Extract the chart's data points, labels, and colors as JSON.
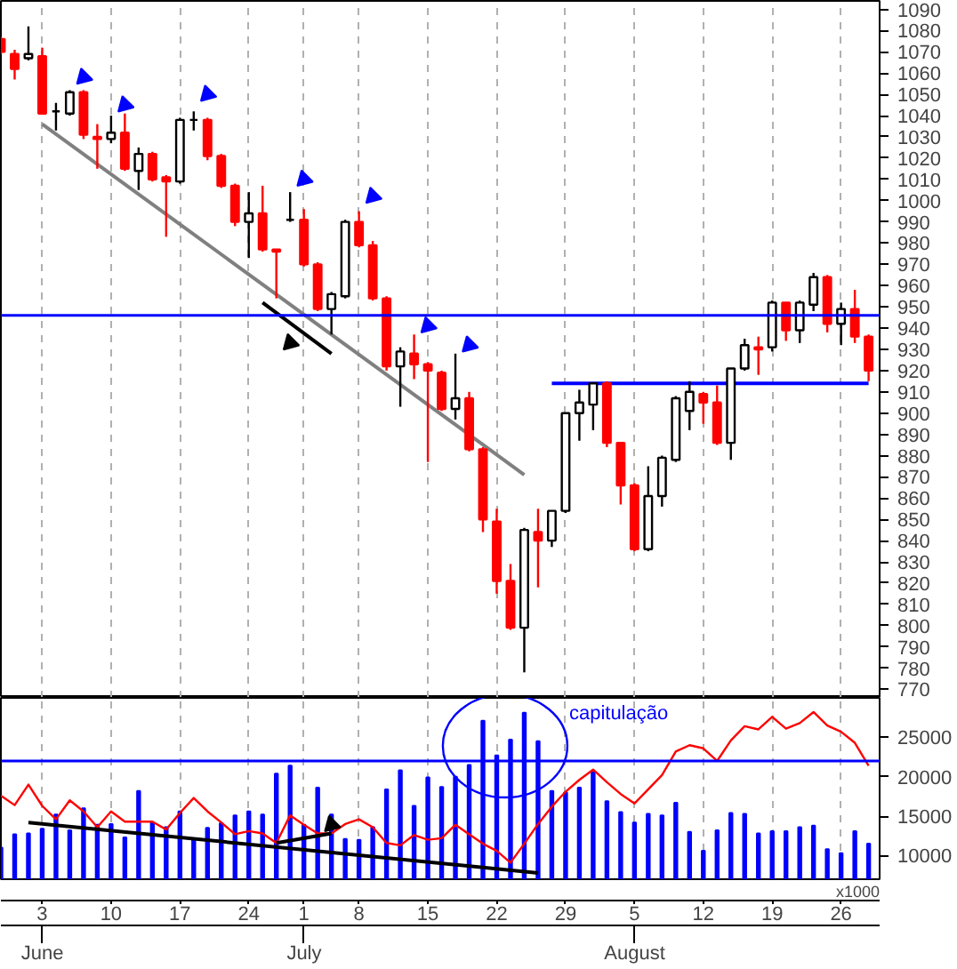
{
  "chart_data": [
    {
      "type": "candlestick",
      "categories": [
        null,
        null,
        null,
        "3",
        null,
        null,
        null,
        null,
        "10",
        null,
        null,
        null,
        null,
        "17",
        null,
        null,
        null,
        null,
        "24",
        null,
        null,
        null,
        "1",
        null,
        null,
        null,
        "8",
        null,
        null,
        null,
        null,
        "15",
        null,
        null,
        null,
        null,
        "22",
        null,
        null,
        null,
        null,
        "29",
        null,
        null,
        null,
        null,
        "5",
        null,
        null,
        null,
        null,
        "12",
        null,
        null,
        null,
        null,
        "19",
        null,
        null,
        null,
        null,
        "26",
        null,
        null
      ],
      "ohlc": [
        [
          1076,
          1077,
          1069,
          1070
        ],
        [
          1069,
          1071,
          1057,
          1062
        ],
        [
          1067,
          1082,
          1066,
          1069
        ],
        [
          1068,
          1072,
          1041,
          1041
        ],
        [
          1042,
          1046,
          1033,
          1042
        ],
        [
          1041,
          1052,
          1040,
          1051
        ],
        [
          1051,
          1052,
          1029,
          1031
        ],
        [
          1030,
          1036,
          1015,
          1029
        ],
        [
          1029,
          1040,
          1027,
          1032
        ],
        [
          1032,
          1041,
          1014,
          1015
        ],
        [
          1014,
          1025,
          1005,
          1022
        ],
        [
          1022,
          1023,
          1009,
          1010
        ],
        [
          1011,
          1012,
          983,
          1009
        ],
        [
          1009,
          1039,
          1008,
          1038
        ],
        [
          1038,
          1042,
          1033,
          1038
        ],
        [
          1038,
          1039,
          1019,
          1021
        ],
        [
          1021,
          1022,
          1006,
          1007
        ],
        [
          1007,
          1008,
          988,
          990
        ],
        [
          990,
          1004,
          973,
          994
        ],
        [
          994,
          1007,
          976,
          977
        ],
        [
          977,
          977,
          954,
          976
        ],
        [
          991,
          1004,
          990,
          991
        ],
        [
          991,
          996,
          969,
          970
        ],
        [
          970,
          971,
          948,
          949
        ],
        [
          949,
          957,
          937,
          956
        ],
        [
          955,
          991,
          954,
          990
        ],
        [
          990,
          995,
          978,
          979
        ],
        [
          979,
          981,
          953,
          954
        ],
        [
          954,
          955,
          920,
          922
        ],
        [
          922,
          931,
          903,
          929
        ],
        [
          928,
          937,
          916,
          923
        ],
        [
          923,
          924,
          877,
          920
        ],
        [
          919,
          920,
          901,
          902
        ],
        [
          902,
          928,
          897,
          907
        ],
        [
          907,
          910,
          882,
          883
        ],
        [
          883,
          884,
          844,
          850
        ],
        [
          849,
          855,
          815,
          821
        ],
        [
          821,
          829,
          798,
          799
        ],
        [
          799,
          846,
          778,
          845
        ],
        [
          844,
          855,
          818,
          840
        ],
        [
          840,
          854,
          837,
          854
        ],
        [
          854,
          900,
          853,
          900
        ],
        [
          900,
          911,
          887,
          905
        ],
        [
          904,
          914,
          892,
          914
        ],
        [
          914,
          915,
          884,
          886
        ],
        [
          886,
          886,
          857,
          866
        ],
        [
          866,
          867,
          835,
          836
        ],
        [
          836,
          875,
          835,
          861
        ],
        [
          861,
          880,
          856,
          879
        ],
        [
          878,
          908,
          877,
          907
        ],
        [
          901,
          915,
          892,
          910
        ],
        [
          909,
          910,
          895,
          905
        ],
        [
          905,
          913,
          885,
          886
        ],
        [
          886,
          921,
          878,
          921
        ],
        [
          921,
          935,
          920,
          932
        ],
        [
          931,
          936,
          918,
          930
        ],
        [
          931,
          953,
          929,
          952
        ],
        [
          952,
          952,
          934,
          939
        ],
        [
          939,
          953,
          933,
          952
        ],
        [
          951,
          966,
          948,
          964
        ],
        [
          964,
          965,
          938,
          942
        ],
        [
          942,
          952,
          932,
          949
        ],
        [
          949,
          958,
          933,
          936
        ],
        [
          936,
          937,
          915,
          920
        ]
      ],
      "colors": [
        "#ff0000",
        "#ff0000",
        "#ffffff",
        "#ff0000",
        "#000000",
        "#ffffff",
        "#ff0000",
        "#ff0000",
        "#ffffff",
        "#ff0000",
        "#ffffff",
        "#ff0000",
        "#ff0000",
        "#ffffff",
        "#000000",
        "#ff0000",
        "#ff0000",
        "#ff0000",
        "#ffffff",
        "#ff0000",
        "#ff0000",
        "#000000",
        "#ff0000",
        "#ff0000",
        "#ffffff",
        "#ffffff",
        "#ff0000",
        "#ff0000",
        "#ff0000",
        "#ffffff",
        "#ff0000",
        "#ff0000",
        "#ff0000",
        "#ffffff",
        "#ff0000",
        "#ff0000",
        "#ff0000",
        "#ff0000",
        "#ffffff",
        "#ff0000",
        "#ffffff",
        "#ffffff",
        "#ffffff",
        "#ffffff",
        "#ff0000",
        "#ff0000",
        "#ff0000",
        "#ffffff",
        "#ffffff",
        "#ffffff",
        "#ffffff",
        "#ff0000",
        "#ff0000",
        "#ffffff",
        "#ffffff",
        "#ff0000",
        "#ffffff",
        "#ff0000",
        "#ffffff",
        "#ffffff",
        "#ff0000",
        "#ffffff",
        "#ff0000",
        "#ff0000"
      ],
      "series": [
        {
          "type": "line",
          "color": "#808080",
          "values": [
            null,
            null,
            null,
            1036,
            null,
            null,
            null,
            null,
            null,
            null,
            null,
            null,
            null,
            null,
            null,
            null,
            null,
            null,
            null,
            null,
            null,
            null,
            null,
            null,
            null,
            null,
            null,
            null,
            null,
            null,
            null,
            null,
            null,
            null,
            null,
            null,
            null,
            null,
            871,
            null,
            null,
            null,
            null,
            null,
            null,
            null,
            null,
            null,
            null,
            null,
            null,
            null,
            null,
            null,
            null,
            null,
            null,
            null,
            null,
            null,
            null,
            null,
            null,
            null
          ]
        },
        {
          "type": "line",
          "color": "#000000",
          "values": [
            null,
            null,
            null,
            null,
            null,
            null,
            null,
            null,
            null,
            null,
            null,
            null,
            null,
            null,
            null,
            null,
            null,
            null,
            null,
            952,
            null,
            null,
            null,
            null,
            928,
            null,
            null,
            null,
            null,
            null,
            null,
            null,
            null,
            null,
            null,
            null,
            null,
            null,
            null,
            null,
            null,
            null,
            null,
            null,
            null,
            null,
            null,
            null,
            null,
            null,
            null,
            null,
            null,
            null,
            null,
            null,
            null,
            null,
            null,
            null,
            null,
            null,
            null,
            null
          ]
        },
        {
          "type": "line",
          "color": "#0000ff",
          "values": [
            null,
            null,
            null,
            null,
            null,
            null,
            null,
            null,
            null,
            null,
            null,
            null,
            null,
            null,
            null,
            null,
            null,
            null,
            null,
            null,
            null,
            null,
            null,
            null,
            null,
            null,
            null,
            null,
            null,
            null,
            null,
            null,
            null,
            null,
            null,
            null,
            null,
            null,
            null,
            null,
            914,
            null,
            null,
            null,
            null,
            null,
            null,
            null,
            null,
            null,
            null,
            null,
            null,
            null,
            null,
            null,
            null,
            null,
            null,
            null,
            null,
            null,
            null,
            914
          ]
        },
        {
          "type": "scatter",
          "marker": "triangle",
          "color": "#0000ff",
          "values": [
            null,
            null,
            null,
            null,
            null,
            null,
            1058,
            null,
            null,
            1045,
            null,
            null,
            null,
            null,
            null,
            1050,
            null,
            null,
            null,
            null,
            null,
            null,
            1010,
            null,
            null,
            null,
            null,
            1002,
            null,
            null,
            null,
            941,
            null,
            null,
            932,
            null,
            null,
            null,
            null,
            null,
            null,
            null,
            null,
            null,
            null,
            null,
            null,
            null,
            null,
            null,
            null,
            null,
            null,
            null,
            null,
            null,
            null,
            null,
            null,
            null,
            null,
            null,
            null,
            null
          ]
        },
        {
          "type": "scatter",
          "marker": "triangle",
          "color": "#000000",
          "values": [
            null,
            null,
            null,
            null,
            null,
            null,
            null,
            null,
            null,
            null,
            null,
            null,
            null,
            null,
            null,
            null,
            null,
            null,
            null,
            null,
            null,
            933,
            null,
            null,
            null,
            null,
            null,
            null,
            null,
            null,
            null,
            null,
            null,
            null,
            null,
            null,
            null,
            null,
            null,
            null,
            null,
            null,
            null,
            null,
            null,
            null,
            null,
            null,
            null,
            null,
            null,
            null,
            null,
            null,
            null,
            null,
            null,
            null,
            null,
            null,
            null,
            null,
            null,
            null
          ]
        }
      ],
      "ref_lines": [
        {
          "axis": "y",
          "value": 946,
          "color": "#0000ff"
        }
      ],
      "ylim": [
        766,
        1094
      ],
      "yticks": [
        770,
        780,
        790,
        800,
        810,
        820,
        830,
        840,
        850,
        860,
        870,
        880,
        890,
        900,
        910,
        920,
        930,
        940,
        950,
        960,
        970,
        980,
        990,
        1000,
        1010,
        1020,
        1030,
        1040,
        1050,
        1060,
        1070,
        1080,
        1090
      ],
      "tick_labels": "y",
      "grid": "x"
    },
    {
      "type": "bar",
      "categories": [
        null,
        null,
        null,
        "3",
        null,
        null,
        null,
        null,
        "10",
        null,
        null,
        null,
        null,
        "17",
        null,
        null,
        null,
        null,
        "24",
        null,
        null,
        null,
        "1",
        null,
        null,
        null,
        "8",
        null,
        null,
        null,
        null,
        "15",
        null,
        null,
        null,
        null,
        "22",
        null,
        null,
        null,
        null,
        "29",
        null,
        null,
        null,
        null,
        "5",
        null,
        null,
        null,
        null,
        "12",
        null,
        null,
        null,
        null,
        "19",
        null,
        null,
        null,
        null,
        "26",
        null,
        null
      ],
      "series": [
        {
          "type": "bar",
          "color": "#0000ff",
          "values": [
            11000,
            12700,
            12800,
            13400,
            15200,
            13200,
            16000,
            13900,
            14000,
            12300,
            18200,
            14200,
            13600,
            15600,
            12100,
            13500,
            14100,
            15100,
            15600,
            15200,
            20400,
            21400,
            13900,
            18600,
            15200,
            12100,
            12000,
            13600,
            18400,
            20800,
            16300,
            19900,
            18700,
            20000,
            21500,
            27100,
            22700,
            24700,
            28100,
            24500,
            18200,
            18000,
            18600,
            20600,
            16900,
            15500,
            14200,
            15300,
            15100,
            16700,
            13000,
            10600,
            13200,
            15400,
            15300,
            12800,
            13100,
            13100,
            13600,
            13800,
            10800,
            10300,
            13100,
            11500
          ]
        },
        {
          "type": "line",
          "color": "#ff0000",
          "values": [
            17600,
            16400,
            19000,
            16300,
            14600,
            17000,
            15600,
            13600,
            15600,
            14300,
            14300,
            14300,
            13300,
            15400,
            17300,
            15600,
            14200,
            12700,
            13100,
            12800,
            11600,
            15100,
            13900,
            12800,
            12800,
            14000,
            14600,
            13600,
            11600,
            11300,
            12600,
            12000,
            12200,
            13900,
            12700,
            11500,
            10600,
            9100,
            11500,
            14000,
            16200,
            18100,
            19600,
            20900,
            19300,
            17800,
            16600,
            18400,
            20200,
            23200,
            24000,
            23600,
            22000,
            24600,
            26400,
            26000,
            27600,
            26100,
            26800,
            28200,
            26500,
            25700,
            24300,
            21400
          ]
        },
        {
          "type": "line",
          "color": "#000000",
          "values": [
            null,
            null,
            14200,
            null,
            null,
            null,
            null,
            null,
            null,
            null,
            null,
            null,
            null,
            null,
            null,
            null,
            null,
            null,
            null,
            null,
            null,
            null,
            null,
            null,
            null,
            null,
            null,
            null,
            null,
            null,
            null,
            null,
            null,
            null,
            null,
            null,
            null,
            null,
            null,
            7800,
            null,
            null,
            null,
            null,
            null,
            null,
            null,
            null,
            null,
            null,
            null,
            null,
            null,
            null,
            null,
            null,
            null,
            null,
            null,
            null,
            null,
            null,
            null,
            null
          ]
        },
        {
          "type": "line",
          "color": "#000000",
          "values": [
            null,
            null,
            null,
            null,
            null,
            null,
            null,
            null,
            null,
            null,
            null,
            null,
            null,
            null,
            null,
            null,
            null,
            null,
            null,
            null,
            11600,
            null,
            null,
            null,
            12800,
            null,
            null,
            null,
            null,
            null,
            null,
            null,
            null,
            null,
            null,
            null,
            null,
            null,
            null,
            null,
            null,
            null,
            null,
            null,
            null,
            null,
            null,
            null,
            null,
            null,
            null,
            null,
            null,
            null,
            null,
            null,
            null,
            null,
            null,
            null,
            null,
            null,
            null,
            null
          ]
        },
        {
          "type": "scatter",
          "marker": "triangle",
          "color": "#000000",
          "values": [
            null,
            null,
            null,
            null,
            null,
            null,
            null,
            null,
            null,
            null,
            null,
            null,
            null,
            null,
            null,
            null,
            null,
            null,
            null,
            null,
            null,
            null,
            null,
            null,
            13900,
            null,
            null,
            null,
            null,
            null,
            null,
            null,
            null,
            null,
            null,
            null,
            null,
            null,
            null,
            null,
            null,
            null,
            null,
            null,
            null,
            null,
            null,
            null,
            null,
            null,
            null,
            null,
            null,
            null,
            null,
            null,
            null,
            null,
            null,
            null,
            null,
            null,
            null,
            null
          ]
        }
      ],
      "ref_lines": [
        {
          "axis": "y",
          "value": 22000,
          "color": "#0000ff"
        }
      ],
      "annotations": [
        "capitulação",
        "x1000",
        "June",
        "July",
        "August"
      ],
      "ylim": [
        7000,
        30000
      ],
      "yticks": [
        10000,
        15000,
        20000,
        25000
      ],
      "grid": "x"
    }
  ]
}
